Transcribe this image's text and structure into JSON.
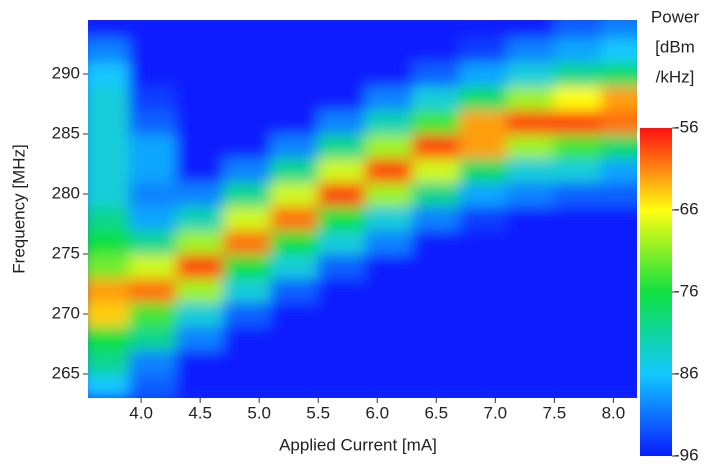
{
  "chart_data": {
    "type": "heatmap",
    "xlabel": "Applied Current [mA]",
    "ylabel": "Frequency [MHz]",
    "colorbar_label": [
      "Power",
      "[dBm",
      "/kHz]"
    ],
    "x": [
      3.7,
      4.1,
      4.5,
      4.9,
      5.3,
      5.7,
      6.1,
      6.5,
      6.9,
      7.3,
      7.7,
      8.1
    ],
    "y": [
      264,
      266,
      268,
      270,
      272,
      274,
      276,
      278,
      280,
      282,
      284,
      286,
      288,
      290,
      292,
      294
    ],
    "z": [
      [
        -86,
        -92,
        -96,
        -96,
        -96,
        -96,
        -96,
        -96,
        -96,
        -96,
        -96,
        -96
      ],
      [
        -80,
        -90,
        -96,
        -96,
        -96,
        -96,
        -96,
        -96,
        -96,
        -96,
        -96,
        -96
      ],
      [
        -76,
        -80,
        -90,
        -96,
        -96,
        -96,
        -96,
        -96,
        -96,
        -96,
        -96,
        -96
      ],
      [
        -64,
        -74,
        -84,
        -92,
        -96,
        -96,
        -96,
        -96,
        -96,
        -96,
        -96,
        -96
      ],
      [
        -62,
        -60,
        -70,
        -84,
        -92,
        -96,
        -96,
        -96,
        -96,
        -96,
        -96,
        -96
      ],
      [
        -72,
        -68,
        -58,
        -76,
        -84,
        -92,
        -96,
        -96,
        -96,
        -96,
        -96,
        -96
      ],
      [
        -76,
        -80,
        -70,
        -60,
        -76,
        -84,
        -90,
        -96,
        -96,
        -96,
        -96,
        -96
      ],
      [
        -80,
        -88,
        -82,
        -68,
        -60,
        -76,
        -84,
        -90,
        -94,
        -96,
        -96,
        -96
      ],
      [
        -84,
        -90,
        -90,
        -80,
        -68,
        -58,
        -70,
        -80,
        -88,
        -90,
        -92,
        -92
      ],
      [
        -84,
        -88,
        -96,
        -90,
        -80,
        -68,
        -58,
        -68,
        -78,
        -84,
        -84,
        -88
      ],
      [
        -84,
        -88,
        -96,
        -96,
        -90,
        -80,
        -70,
        -58,
        -62,
        -70,
        -74,
        -78
      ],
      [
        -84,
        -92,
        -96,
        -96,
        -96,
        -90,
        -82,
        -74,
        -62,
        -58,
        -58,
        -60
      ],
      [
        -84,
        -94,
        -96,
        -96,
        -96,
        -96,
        -90,
        -84,
        -78,
        -70,
        -66,
        -62
      ],
      [
        -86,
        -96,
        -96,
        -96,
        -96,
        -96,
        -96,
        -92,
        -88,
        -84,
        -80,
        -78
      ],
      [
        -90,
        -96,
        -96,
        -96,
        -96,
        -96,
        -96,
        -96,
        -94,
        -90,
        -88,
        -86
      ],
      [
        -96,
        -96,
        -96,
        -96,
        -96,
        -96,
        -96,
        -96,
        -96,
        -96,
        -92,
        -90
      ]
    ],
    "xlim": [
      3.55,
      8.2
    ],
    "ylim": [
      263,
      294.5
    ],
    "xticks": [
      {
        "value": 4,
        "label": "4.0"
      },
      4.5,
      {
        "value": 5,
        "label": "5.0"
      },
      5.5,
      {
        "value": 6,
        "label": "6.0"
      },
      6.5,
      {
        "value": 7,
        "label": "7.0"
      },
      7.5,
      {
        "value": 8,
        "label": "8.0"
      }
    ],
    "yticks": [
      265,
      270,
      275,
      280,
      285,
      290
    ],
    "clim": [
      -96,
      -56
    ],
    "cticks": [
      -56,
      -66,
      -76,
      -86,
      -96
    ],
    "colorscale": [
      "#0a1cff",
      "#12c8ff",
      "#10e040",
      "#ffff10",
      "#ff1010"
    ],
    "background": "#0a2cff"
  }
}
